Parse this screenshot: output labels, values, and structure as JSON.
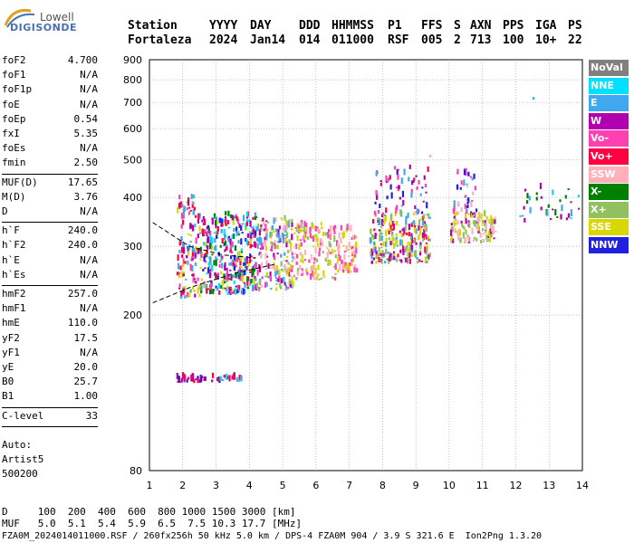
{
  "logo": {
    "top": "Lowell",
    "bottom": "DIGISONDE"
  },
  "header": {
    "labels": [
      "Station",
      "YYYY",
      "DAY",
      "DDD",
      "HHMMSS",
      "P1",
      "FFS",
      "S",
      "AXN",
      "PPS",
      "IGA",
      "PS"
    ],
    "values": [
      "Fortaleza",
      "2024",
      "Jan14",
      "014",
      "011000",
      "RSF",
      "005",
      "2",
      "713",
      "100",
      "10+",
      "22"
    ]
  },
  "params_group1": [
    {
      "k": "foF2",
      "v": "4.700"
    },
    {
      "k": "foF1",
      "v": "N/A"
    },
    {
      "k": "foF1p",
      "v": "N/A"
    },
    {
      "k": "foE",
      "v": "N/A"
    },
    {
      "k": "foEp",
      "v": "0.54"
    },
    {
      "k": "fxI",
      "v": "5.35"
    },
    {
      "k": "foEs",
      "v": "N/A"
    },
    {
      "k": "fmin",
      "v": "2.50"
    }
  ],
  "params_group2": [
    {
      "k": "MUF(D)",
      "v": "17.65"
    },
    {
      "k": "M(D)",
      "v": "3.76"
    },
    {
      "k": "D",
      "v": "N/A"
    }
  ],
  "params_group3": [
    {
      "k": "h`F",
      "v": "240.0"
    },
    {
      "k": "h`F2",
      "v": "240.0"
    },
    {
      "k": "h`E",
      "v": "N/A"
    },
    {
      "k": "h`Es",
      "v": "N/A"
    }
  ],
  "params_group4": [
    {
      "k": "hmF2",
      "v": "257.0"
    },
    {
      "k": "hmF1",
      "v": "N/A"
    },
    {
      "k": "hmE",
      "v": "110.0"
    },
    {
      "k": "yF2",
      "v": "17.5"
    },
    {
      "k": "yF1",
      "v": "N/A"
    },
    {
      "k": "yE",
      "v": "20.0"
    },
    {
      "k": "B0",
      "v": "25.7"
    },
    {
      "k": "B1",
      "v": "1.00"
    }
  ],
  "params_group5": [
    {
      "k": "C-level",
      "v": "33"
    }
  ],
  "auto": {
    "line1": "Auto:",
    "line2": "Artist5",
    "line3": "500200"
  },
  "legend": [
    {
      "label": "NoVal",
      "bg": "#808080",
      "fg": "#ffffff"
    },
    {
      "label": "NNE",
      "bg": "#00e0ff",
      "fg": "#ffffff"
    },
    {
      "label": "E",
      "bg": "#40a8f0",
      "fg": "#ffffff"
    },
    {
      "label": "W",
      "bg": "#b000b0",
      "fg": "#ffffff"
    },
    {
      "label": "Vo-",
      "bg": "#ff40b0",
      "fg": "#ffffff"
    },
    {
      "label": "Vo+",
      "bg": "#ff0040",
      "fg": "#ffffff"
    },
    {
      "label": "SSW",
      "bg": "#ffb0b8",
      "fg": "#ffffff"
    },
    {
      "label": "X-",
      "bg": "#008000",
      "fg": "#ffffff"
    },
    {
      "label": "X+",
      "bg": "#90c060",
      "fg": "#ffffff"
    },
    {
      "label": "SSE",
      "bg": "#d8d800",
      "fg": "#ffffff"
    },
    {
      "label": "NNW",
      "bg": "#2020e0",
      "fg": "#ffffff"
    }
  ],
  "bottom": {
    "line1": "D     100  200  400  600  800 1000 1500 3000 [km]",
    "line2": "MUF   5.0  5.1  5.4  5.9  6.5  7.5 10.3 17.7 [MHz]",
    "line3": "FZA0M_2024014011000.RSF / 260fx256h 50 kHz 5.0 km / DPS-4 FZA0M 904 / 3.9 S 321.6 E  Ion2Png 1.3.20"
  },
  "chart_data": {
    "type": "scatter",
    "title": "",
    "xlabel": "",
    "ylabel": "",
    "xlim": [
      1,
      14
    ],
    "ylim": [
      80,
      900
    ],
    "y_scale": "log",
    "x_ticks": [
      1,
      2,
      3,
      4,
      5,
      6,
      7,
      8,
      9,
      10,
      11,
      12,
      13,
      14
    ],
    "y_ticks": [
      80,
      200,
      300,
      400,
      500,
      600,
      700,
      800,
      900
    ],
    "grid": true,
    "legend_position": "right",
    "trace_lines": [
      {
        "name": "",
        "points": [
          [
            1.1,
            345
          ],
          [
            2.2,
            300
          ],
          [
            3.2,
            285
          ],
          [
            4.2,
            280
          ]
        ]
      },
      {
        "name": "",
        "points": [
          [
            1.1,
            215
          ],
          [
            2.2,
            235
          ],
          [
            3.5,
            255
          ],
          [
            4.8,
            270
          ]
        ]
      }
    ],
    "clusters": [
      {
        "x": [
          1.8,
          2.5
        ],
        "y": [
          220,
          400
        ],
        "n": 120,
        "colors": [
          "#b000b0",
          "#ff0040",
          "#d8d800",
          "#40a8f0",
          "#ff40b0"
        ]
      },
      {
        "x": [
          2.5,
          4.2
        ],
        "y": [
          225,
          360
        ],
        "n": 380,
        "colors": [
          "#b000b0",
          "#ff0040",
          "#ff40b0",
          "#d8d800",
          "#40a8f0",
          "#00e0ff",
          "#2020e0",
          "#008000"
        ]
      },
      {
        "x": [
          4.2,
          5.3
        ],
        "y": [
          230,
          350
        ],
        "n": 180,
        "colors": [
          "#d8d800",
          "#ff40b0",
          "#b000b0",
          "#ffb0b8",
          "#90c060",
          "#40a8f0"
        ]
      },
      {
        "x": [
          5.3,
          6.6
        ],
        "y": [
          245,
          340
        ],
        "n": 140,
        "colors": [
          "#d8d800",
          "#ffb0b8",
          "#ff40b0",
          "#90c060"
        ]
      },
      {
        "x": [
          6.6,
          7.2
        ],
        "y": [
          255,
          330
        ],
        "n": 70,
        "colors": [
          "#ffb0b8",
          "#d8d800",
          "#ff40b0"
        ]
      },
      {
        "x": [
          7.6,
          9.4
        ],
        "y": [
          270,
          360
        ],
        "n": 230,
        "colors": [
          "#d8d800",
          "#90c060",
          "#b000b0",
          "#ff0040",
          "#40a8f0"
        ]
      },
      {
        "x": [
          7.7,
          9.4
        ],
        "y": [
          360,
          480
        ],
        "n": 60,
        "colors": [
          "#ff0040",
          "#b000b0",
          "#40a8f0",
          "#2020e0",
          "#ff40b0"
        ]
      },
      {
        "x": [
          10,
          11.4
        ],
        "y": [
          305,
          360
        ],
        "n": 110,
        "colors": [
          "#d8d800",
          "#90c060",
          "#ffb0b8",
          "#b000b0"
        ]
      },
      {
        "x": [
          10.1,
          10.8
        ],
        "y": [
          360,
          470
        ],
        "n": 40,
        "colors": [
          "#ff40b0",
          "#ffb0b8",
          "#40a8f0",
          "#2020e0"
        ]
      },
      {
        "x": [
          12.1,
          13.9
        ],
        "y": [
          345,
          420
        ],
        "n": 35,
        "colors": [
          "#00e0ff",
          "#008000",
          "#40a8f0",
          "#b000b0"
        ]
      },
      {
        "x": [
          1.8,
          3.1
        ],
        "y": [
          134,
          138
        ],
        "n": 40,
        "colors": [
          "#b000b0",
          "#ff0040",
          "#2020e0"
        ]
      },
      {
        "x": [
          3.1,
          3.8
        ],
        "y": [
          135,
          139
        ],
        "n": 25,
        "colors": [
          "#00e0ff",
          "#40a8f0",
          "#b000b0",
          "#ff0040"
        ]
      }
    ],
    "isolated_points": [
      {
        "x": 12.5,
        "y": 715,
        "color": "#40a8f0"
      },
      {
        "x": 9.4,
        "y": 509,
        "color": "#ffb0b8"
      }
    ]
  }
}
